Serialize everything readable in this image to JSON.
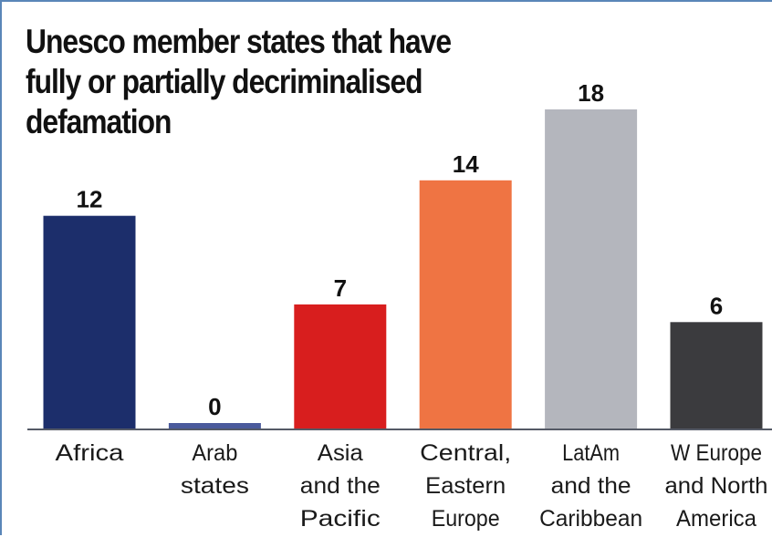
{
  "chart_data": {
    "type": "bar",
    "title": "Unesco member states that have fully or partially decriminalised defamation",
    "categories": [
      [
        "Africa"
      ],
      [
        "Arab",
        "states"
      ],
      [
        "Asia",
        "and the",
        "Pacific"
      ],
      [
        "Central,",
        "Eastern",
        "Europe"
      ],
      [
        "LatAm",
        "and the",
        "Caribbean"
      ],
      [
        "W Europe",
        "and North",
        "America"
      ]
    ],
    "values": [
      12,
      0,
      7,
      14,
      18,
      6
    ],
    "value_labels": [
      "12",
      "0",
      "7",
      "14",
      "18",
      "6"
    ],
    "colors": [
      "#1c2e6b",
      "#4a5a9c",
      "#d81e1e",
      "#ef7443",
      "#b4b6bd",
      "#3b3b3e"
    ],
    "ylim": [
      0,
      18
    ],
    "grid": false,
    "legend": "none"
  }
}
